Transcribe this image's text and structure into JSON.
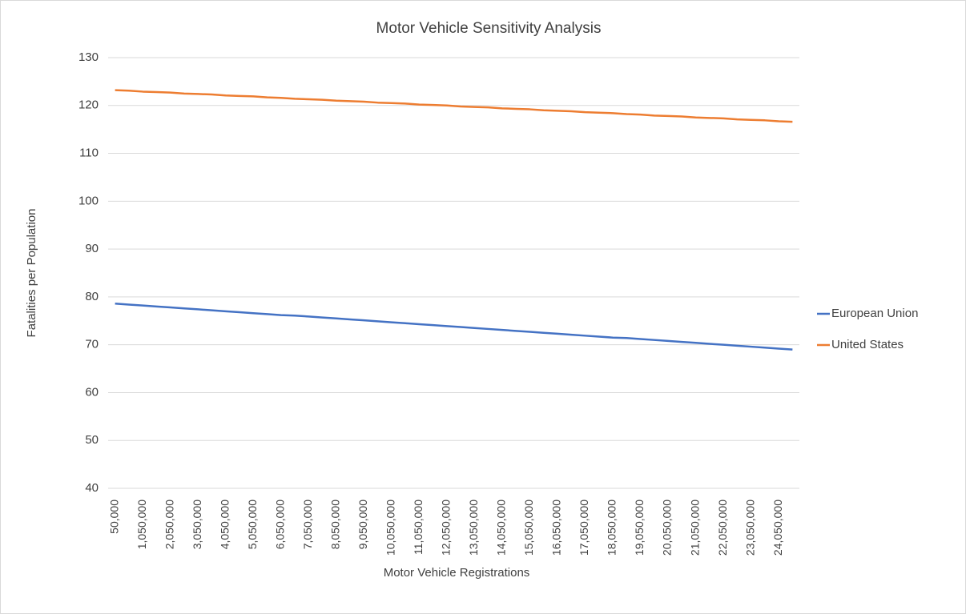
{
  "chart_data": {
    "type": "line",
    "title": "Motor Vehicle Sensitivity Analysis",
    "x_label": "Motor Vehicle Registrations",
    "y_label": "Fatalities per Population",
    "categories": [
      "50,000",
      null,
      "1,050,000",
      null,
      "2,050,000",
      null,
      "3,050,000",
      null,
      "4,050,000",
      null,
      "5,050,000",
      null,
      "6,050,000",
      null,
      "7,050,000",
      null,
      "8,050,000",
      null,
      "9,050,000",
      null,
      "10,050,000",
      null,
      "11,050,000",
      null,
      "12,050,000",
      null,
      "13,050,000",
      null,
      "14,050,000",
      null,
      "15,050,000",
      null,
      "16,050,000",
      null,
      "17,050,000",
      null,
      "18,050,000",
      null,
      "19,050,000",
      null,
      "20,050,000",
      null,
      "21,050,000",
      null,
      "22,050,000",
      null,
      "23,050,000",
      null,
      "24,050,000",
      null
    ],
    "series": [
      {
        "name": "European Union",
        "color": "#4472c4",
        "values": [
          78.6,
          78.4,
          78.2,
          78.0,
          77.8,
          77.6,
          77.4,
          77.2,
          77.0,
          76.8,
          76.6,
          76.4,
          76.2,
          76.1,
          75.9,
          75.7,
          75.5,
          75.3,
          75.1,
          74.9,
          74.7,
          74.5,
          74.3,
          74.1,
          73.9,
          73.7,
          73.5,
          73.3,
          73.1,
          72.9,
          72.7,
          72.5,
          72.3,
          72.1,
          71.9,
          71.7,
          71.5,
          71.4,
          71.2,
          71.0,
          70.8,
          70.6,
          70.4,
          70.2,
          70.0,
          69.8,
          69.6,
          69.4,
          69.2,
          69.0
        ]
      },
      {
        "name": "United States",
        "color": "#ed7d31",
        "values": [
          123.2,
          123.1,
          122.9,
          122.8,
          122.7,
          122.5,
          122.4,
          122.3,
          122.1,
          122.0,
          121.9,
          121.7,
          121.6,
          121.4,
          121.3,
          121.2,
          121.0,
          120.9,
          120.8,
          120.6,
          120.5,
          120.4,
          120.2,
          120.1,
          120.0,
          119.8,
          119.7,
          119.6,
          119.4,
          119.3,
          119.2,
          119.0,
          118.9,
          118.8,
          118.6,
          118.5,
          118.4,
          118.2,
          118.1,
          117.9,
          117.8,
          117.7,
          117.5,
          117.4,
          117.3,
          117.1,
          117.0,
          116.9,
          116.7,
          116.6
        ]
      }
    ],
    "ylim": [
      40,
      130
    ],
    "yticks": [
      40,
      50,
      60,
      70,
      80,
      90,
      100,
      110,
      120,
      130
    ],
    "grid": true,
    "legend": "right"
  }
}
